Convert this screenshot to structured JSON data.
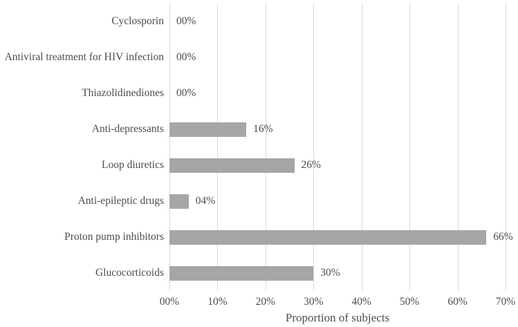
{
  "chart_data": {
    "type": "bar",
    "orientation": "horizontal",
    "title": "",
    "xlabel": "Proportion of subjects",
    "ylabel": "",
    "xlim": [
      0,
      70
    ],
    "grid": "vertical",
    "legend": "none",
    "bar_color": "#a6a6a6",
    "gridline_color": "#d9d9d9",
    "text_color": "#4d4d4d",
    "categories": [
      "Cyclosporin",
      "Antiviral treatment for HIV infection",
      "Thiazolidinediones",
      "Anti-depressants",
      "Loop diuretics",
      "Anti-epileptic drugs",
      "Proton pump inhibitors",
      "Glucocorticoids"
    ],
    "values": [
      0,
      0,
      0,
      16,
      26,
      4,
      66,
      30
    ],
    "value_labels": [
      "00%",
      "00%",
      "00%",
      "16%",
      "26%",
      "04%",
      "66%",
      "30%"
    ],
    "x_ticks": [
      0,
      10,
      20,
      30,
      40,
      50,
      60,
      70
    ],
    "x_tick_labels": [
      "00%",
      "10%",
      "20%",
      "30%",
      "40%",
      "50%",
      "60%",
      "70%"
    ]
  }
}
